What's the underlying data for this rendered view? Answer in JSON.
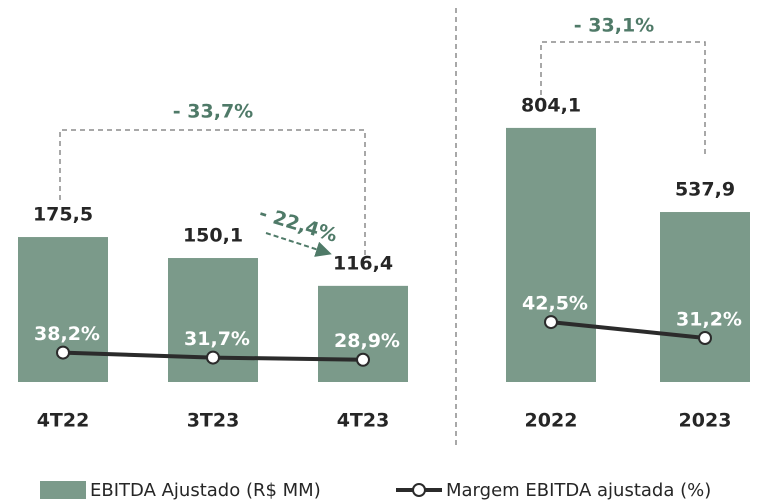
{
  "chart_data": [
    {
      "type": "bar",
      "categories": [
        "4T22",
        "3T23",
        "4T23"
      ],
      "series": [
        {
          "name": "EBITDA Ajustado (R$ MM)",
          "color": "#7b9a8a",
          "values": [
            175.5,
            150.1,
            116.4
          ],
          "value_labels": [
            "175,5",
            "150,1",
            "116,4"
          ]
        },
        {
          "name": "Margem EBITDA ajustada (%)",
          "type": "line",
          "color": "#2b2b2b",
          "values": [
            38.2,
            31.7,
            28.9
          ],
          "value_labels": [
            "38,2%",
            "31,7%",
            "28,9%"
          ]
        }
      ],
      "annotations": [
        "- 33,7%",
        "- 22,4%"
      ]
    },
    {
      "type": "bar",
      "categories": [
        "2022",
        "2023"
      ],
      "series": [
        {
          "color": "#7b9a8a",
          "values": [
            804.1,
            537.9
          ],
          "value_labels": [
            "804,1",
            "537,9"
          ]
        },
        {
          "type": "line",
          "color": "#2b2b2b",
          "values": [
            42.5,
            31.2
          ],
          "value_labels": [
            "42,5%",
            "31,2%"
          ]
        }
      ],
      "annotations": [
        "- 33,1%"
      ]
    }
  ]
}
